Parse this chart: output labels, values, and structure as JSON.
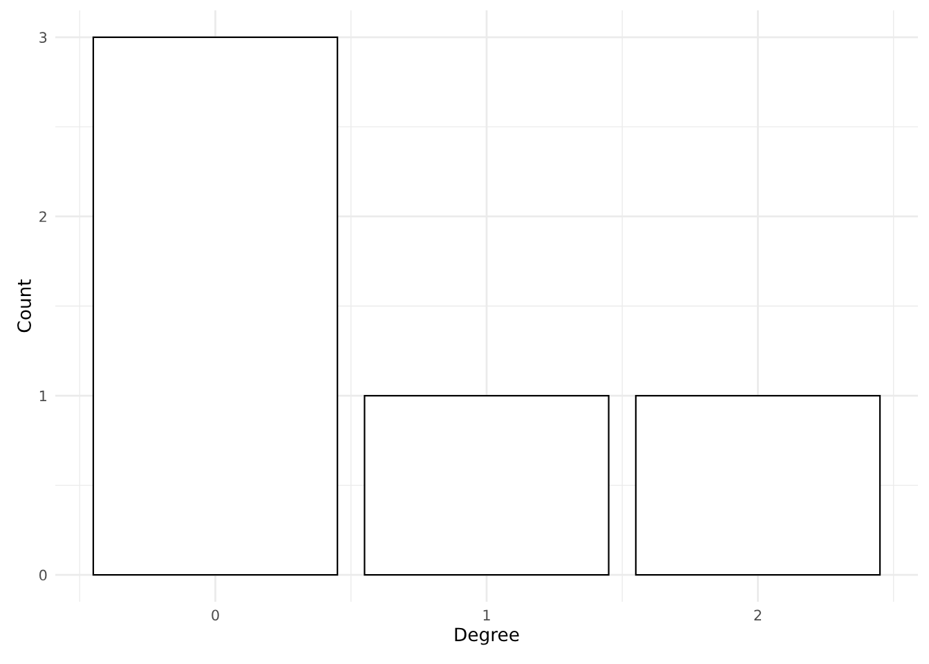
{
  "chart_data": {
    "type": "bar",
    "xlabel": "Degree",
    "ylabel": "Count",
    "x": [
      0,
      1,
      2
    ],
    "values": [
      3,
      1,
      1
    ],
    "color": "#ffffff",
    "xlim": [
      -0.59,
      2.59
    ],
    "xticks": [
      0,
      1,
      2
    ],
    "ylim": [
      -0.15,
      3.15
    ],
    "yticks": [
      0,
      1,
      2,
      3
    ],
    "grid": true
  }
}
